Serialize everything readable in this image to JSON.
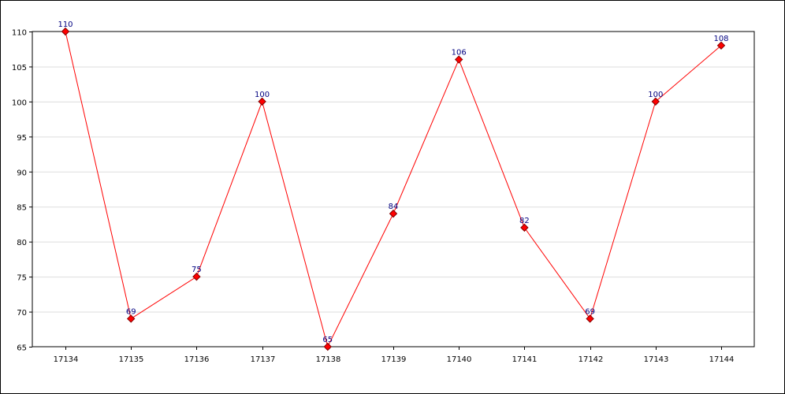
{
  "chart_data": {
    "type": "line",
    "title": "",
    "xlabel": "",
    "ylabel": "",
    "categories": [
      "17134",
      "17135",
      "17136",
      "17137",
      "17138",
      "17139",
      "17140",
      "17141",
      "17142",
      "17143",
      "17144"
    ],
    "series": [
      {
        "values": [
          110,
          69,
          75,
          100,
          65,
          84,
          106,
          82,
          69,
          100,
          108
        ]
      }
    ],
    "ylim": [
      65,
      110
    ],
    "yticks": [
      65,
      70,
      75,
      80,
      85,
      90,
      95,
      100,
      105,
      110
    ],
    "grid": "horizontal",
    "colors": {
      "line": "#ff0000",
      "marker_fill": "#ff0000",
      "marker_edge": "#800000",
      "label": "#000080",
      "grid": "#dddddd"
    },
    "show_data_labels": true
  }
}
